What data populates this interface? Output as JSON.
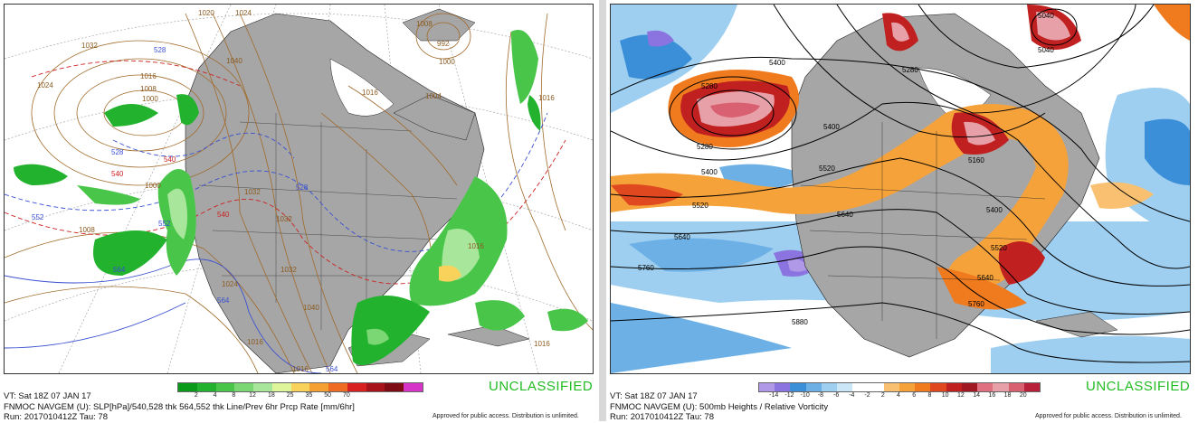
{
  "left": {
    "info_lines": [
      "VT: Sat 18Z 07 JAN 17",
      "FNMOC NAVGEM (U): SLP[hPa]/540,528 thk 564,552 thk Line/Prev 6hr Prcp Rate [mm/6hr]",
      "Run: 2017010412Z Tau: 78"
    ],
    "classification": "UNCLASSIFIED",
    "approved": "Approved for public access. Distribution is unlimited.",
    "colorbar": {
      "colors": [
        "#0a9a1a",
        "#22b22e",
        "#49c54a",
        "#7ad774",
        "#a8e79b",
        "#dff59a",
        "#f9d25c",
        "#f5a032",
        "#ef6a23",
        "#d82020",
        "#a8121a",
        "#7e0a14",
        "#d633c8"
      ],
      "ticks": [
        "2",
        "4",
        "8",
        "12",
        "18",
        "25",
        "35",
        "50",
        "70"
      ]
    },
    "labels": {
      "slp": [
        "1024",
        "1016",
        "1008",
        "1000",
        "1032",
        "1040",
        "1024",
        "1016",
        "1016",
        "1008",
        "1004",
        "1000",
        "992",
        "1032",
        "1032",
        "1024",
        "1040",
        "1032",
        "1016",
        "1016",
        "1008",
        "1000",
        "1016",
        "1016",
        "1020"
      ],
      "thickness": [
        "528",
        "528",
        "540",
        "540",
        "552",
        "564",
        "528",
        "540",
        "552",
        "564",
        "564"
      ]
    }
  },
  "right": {
    "info_lines": [
      "VT: Sat 18Z 07 JAN 17",
      "FNMOC NAVGEM (U): 500mb Heights / Relative Vorticity",
      "Run: 2017010412Z Tau: 78"
    ],
    "classification": "UNCLASSIFIED",
    "approved": "Approved for public access. Distribution is unlimited.",
    "colorbar": {
      "colors": [
        "#b09ae8",
        "#8c74e0",
        "#3b8fd8",
        "#6cb0e6",
        "#9fcff0",
        "#cbe6f7",
        "#ffffff",
        "#ffffff",
        "#f8c070",
        "#f6a23a",
        "#f07a1e",
        "#e04820",
        "#c02020",
        "#a01822",
        "#e07080",
        "#e8a0a8",
        "#d86070",
        "#b8203a"
      ],
      "ticks": [
        "-14",
        "-12",
        "-10",
        "-8",
        "-6",
        "-4",
        "-2",
        "2",
        "4",
        "6",
        "8",
        "10",
        "12",
        "14",
        "16",
        "18",
        "20"
      ]
    },
    "labels": {
      "heights": [
        "5400",
        "5280",
        "5280",
        "5400",
        "5520",
        "5640",
        "5760",
        "5400",
        "5520",
        "5640",
        "5040",
        "5160",
        "5280",
        "5400",
        "5520",
        "5640",
        "5760",
        "5880",
        "5040"
      ]
    }
  }
}
